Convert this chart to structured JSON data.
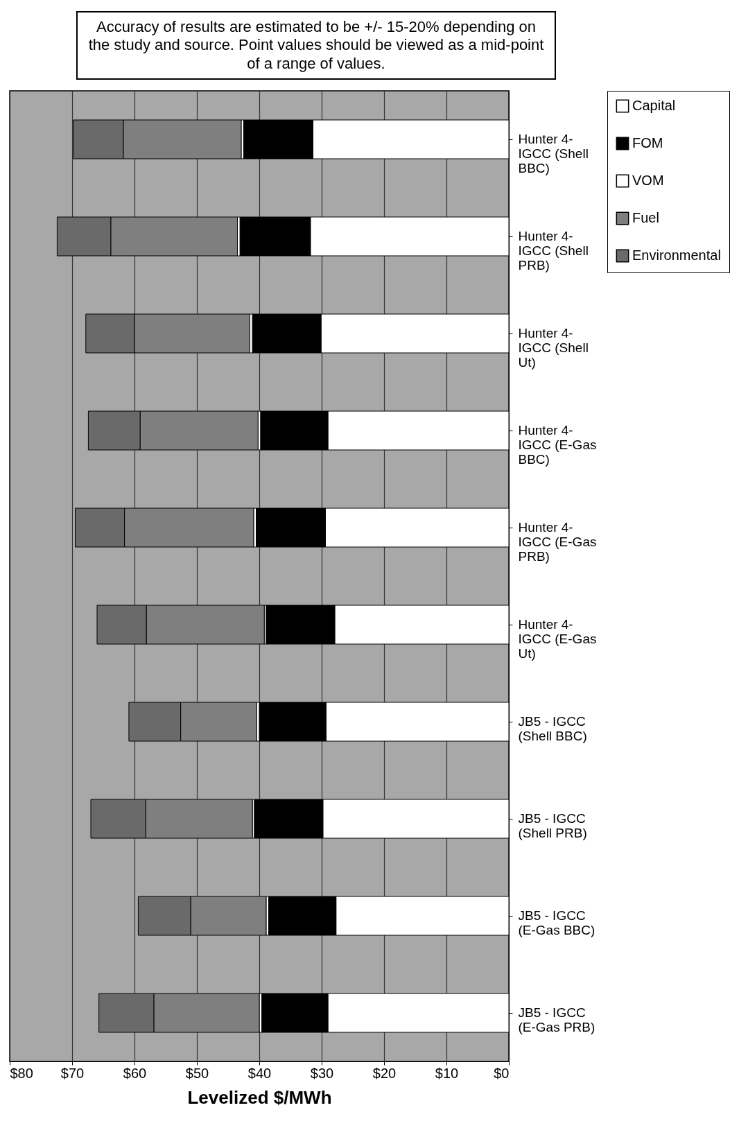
{
  "chart_data": {
    "type": "bar",
    "stacked": true,
    "orientation": "horizontal",
    "xlabel": "Levelized $/MWh",
    "categories": [
      "Hunter 4-IGCC (Shell BBC)",
      "Hunter 4-IGCC (Shell PRB)",
      "Hunter 4-IGCC (Shell Ut)",
      "Hunter 4-IGCC (E-Gas BBC)",
      "Hunter 4-IGCC (E-Gas PRB)",
      "Hunter 4-IGCC (E-Gas Ut)",
      "JB5 - IGCC (Shell BBC)",
      "JB5 - IGCC (Shell PRB)",
      "JB5 - IGCC (E-Gas BBC)",
      "JB5 - IGCC (E-Gas PRB)"
    ],
    "series": [
      {
        "name": "Capital",
        "color": "#ffffff",
        "values": [
          31.4,
          31.8,
          30.1,
          29.0,
          29.4,
          27.9,
          29.3,
          29.8,
          27.7,
          29.0
        ]
      },
      {
        "name": "FOM",
        "color": "#000000",
        "values": [
          11.1,
          11.3,
          11.0,
          10.8,
          11.1,
          11.0,
          10.7,
          11.0,
          10.8,
          10.6
        ]
      },
      {
        "name": "VOM",
        "color": "#ffffff",
        "values": [
          0.4,
          0.4,
          0.4,
          0.4,
          0.4,
          0.3,
          0.4,
          0.3,
          0.4,
          0.4
        ]
      },
      {
        "name": "Fuel",
        "color": "#7f7f7f",
        "values": [
          18.9,
          20.3,
          18.5,
          18.9,
          20.7,
          18.9,
          12.2,
          17.1,
          12.1,
          16.9
        ]
      },
      {
        "name": "Environmental",
        "color": "#6a6a6a",
        "values": [
          8.0,
          8.6,
          7.8,
          8.3,
          7.9,
          7.9,
          8.3,
          8.8,
          8.4,
          8.8
        ]
      }
    ],
    "xlim": [
      80,
      0
    ],
    "xticks": [
      {
        "value": 80,
        "label": "$80"
      },
      {
        "value": 70,
        "label": "$70"
      },
      {
        "value": 60,
        "label": "$60"
      },
      {
        "value": 50,
        "label": "$50"
      },
      {
        "value": 40,
        "label": "$40"
      },
      {
        "value": 30,
        "label": "$30"
      },
      {
        "value": 20,
        "label": "$20"
      },
      {
        "value": 10,
        "label": "$10"
      },
      {
        "value": 0,
        "label": "$0"
      }
    ],
    "grid": "x",
    "legend": "right",
    "annotations": [
      "Accuracy of results are estimated to be +/- 15-20% depending on the study and source. Point values should be viewed as a mid-point of a range of values."
    ]
  }
}
